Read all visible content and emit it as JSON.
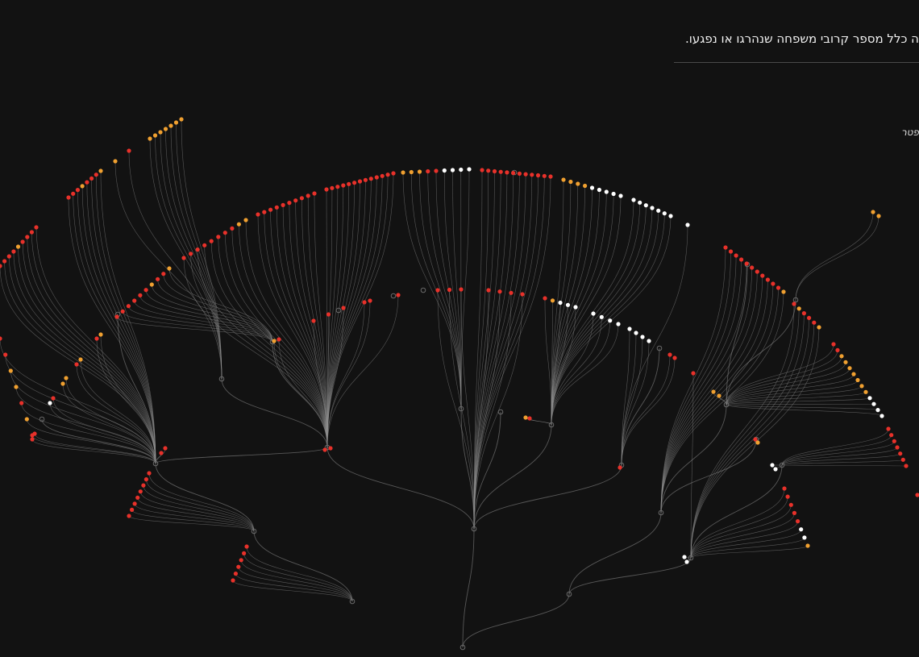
{
  "header": {
    "caption": "ה כלל מספר קרובי משפחה שנהרגו או נפגעו.",
    "side_label": "פטר"
  },
  "legend_colors": {
    "killed": "#e8312a",
    "injured": "#f0a030",
    "other": "#ffffff",
    "node": "#6a6a6a",
    "link": "#8f8f8f"
  }
}
